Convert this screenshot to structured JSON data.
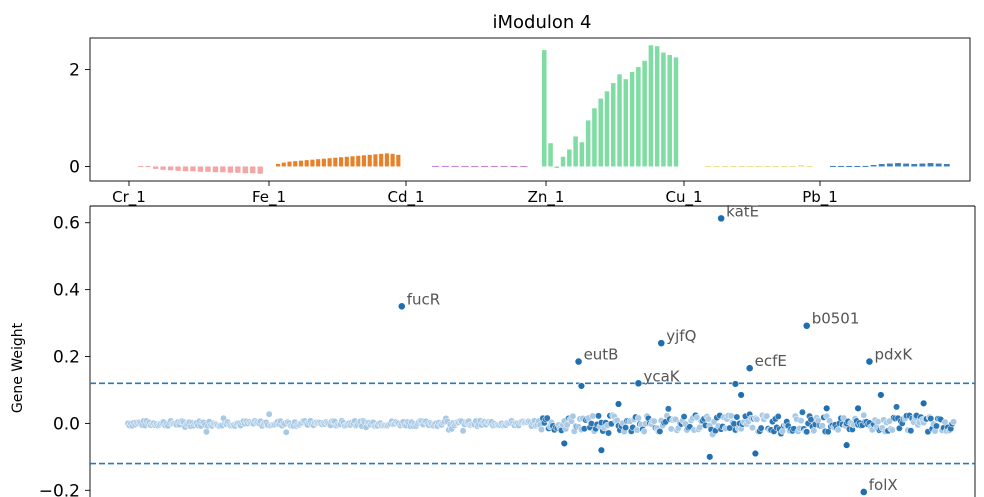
{
  "chart_data": [
    {
      "type": "bar",
      "title": "iModulon 4",
      "ylim": [
        -0.3,
        2.65
      ],
      "yticks": [
        0,
        2
      ],
      "xtick_labels": [
        "Cr_1",
        "Fe_1",
        "Cd_1",
        "Zn_1",
        "Cu_1",
        "Pb_1"
      ],
      "groups": [
        {
          "name": "Cr_1",
          "color": "#f4a6a6",
          "values": [
            0.01,
            0.0,
            -0.05,
            -0.07,
            -0.08,
            -0.09,
            -0.1,
            -0.1,
            -0.11,
            -0.11,
            -0.12,
            -0.12,
            -0.13,
            -0.13,
            -0.14,
            -0.14,
            -0.15
          ]
        },
        {
          "name": "Fe_1",
          "color": "#e8802a",
          "values": [
            0.05,
            0.08,
            0.1,
            0.11,
            0.12,
            0.13,
            0.14,
            0.15,
            0.16,
            0.17,
            0.18,
            0.19,
            0.2,
            0.21,
            0.22,
            0.23,
            0.24,
            0.25,
            0.26,
            0.27,
            0.26,
            0.24
          ]
        },
        {
          "name": "Cd_1",
          "color": "#c47fd0",
          "values": [
            -0.02,
            -0.01,
            0.01,
            -0.02,
            0.02,
            0.01,
            0.0,
            -0.01,
            0.01,
            0.02
          ]
        },
        {
          "name": "Zn_1",
          "color": "#7fdca2",
          "values": [
            2.4,
            0.48,
            -0.03,
            0.2,
            0.35,
            0.62,
            0.5,
            0.95,
            1.2,
            1.4,
            1.55,
            1.72,
            1.9,
            1.8,
            1.95,
            2.05,
            2.18,
            2.5,
            2.48,
            2.35,
            2.3,
            2.25
          ]
        },
        {
          "name": "Cu_1",
          "color": "#f2e08a",
          "values": [
            -0.02,
            -0.01,
            0.0,
            0.01,
            -0.02,
            0.01,
            0.02,
            0.01,
            -0.01,
            0.02,
            0.01,
            0.03,
            0.02
          ]
        },
        {
          "name": "Pb_1",
          "color": "#3b7dc0",
          "values": [
            0.02,
            0.01,
            0.0,
            0.02,
            0.01,
            0.03,
            0.05,
            0.06,
            0.07,
            0.06,
            0.05,
            0.06,
            0.07,
            0.06,
            0.05
          ]
        }
      ]
    },
    {
      "type": "scatter",
      "ylabel": "Gene Weight",
      "ylim": [
        -0.22,
        0.65
      ],
      "yticks": [
        -0.2,
        0.0,
        0.2,
        0.4,
        0.6
      ],
      "threshold": 0.12,
      "labeled_points": [
        {
          "gene": "katE",
          "x": 2080,
          "y": 0.613
        },
        {
          "gene": "fucR",
          "x": 960,
          "y": 0.35
        },
        {
          "gene": "eutB",
          "x": 1580,
          "y": 0.185
        },
        {
          "gene": "yjfQ",
          "x": 1870,
          "y": 0.24
        },
        {
          "gene": "b0501",
          "x": 2380,
          "y": 0.292
        },
        {
          "gene": "ecfE",
          "x": 2180,
          "y": 0.165
        },
        {
          "gene": "pdxK",
          "x": 2600,
          "y": 0.185
        },
        {
          "gene": "ycaK",
          "x": 1790,
          "y": 0.12
        },
        {
          "gene": "folX",
          "x": 2580,
          "y": -0.205
        }
      ],
      "notable_points": [
        {
          "x": 1590,
          "y": 0.112
        },
        {
          "x": 2130,
          "y": 0.118
        },
        {
          "x": 2150,
          "y": 0.085
        },
        {
          "x": 2640,
          "y": 0.085
        },
        {
          "x": 2200,
          "y": -0.09
        },
        {
          "x": 2040,
          "y": -0.1
        },
        {
          "x": 1660,
          "y": -0.08
        },
        {
          "x": 1530,
          "y": -0.06
        },
        {
          "x": 2520,
          "y": -0.065
        },
        {
          "x": 2790,
          "y": 0.06
        },
        {
          "x": 1720,
          "y": 0.058
        },
        {
          "x": 2450,
          "y": 0.045
        },
        {
          "x": 2560,
          "y": 0.045
        }
      ]
    }
  ]
}
